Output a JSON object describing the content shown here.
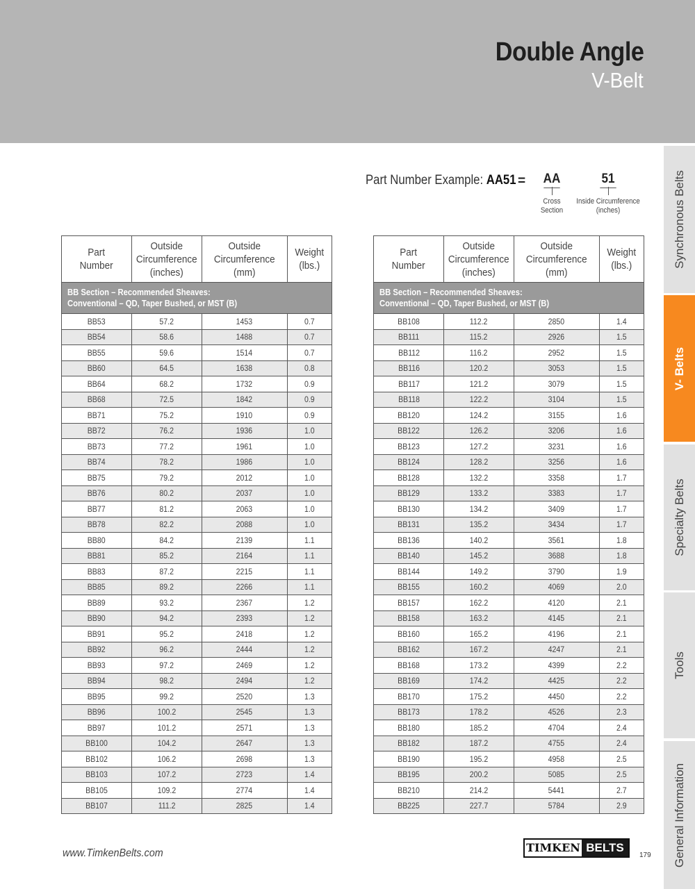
{
  "header": {
    "title": "Double Angle",
    "subtitle": "V-Belt"
  },
  "part_example": {
    "label": "Part Number Example: ",
    "code": "AA51",
    "equals": "=",
    "section_code": "AA",
    "section_note_1": "Cross",
    "section_note_2": "Section",
    "length_code": "51",
    "length_note_1": "Inside Circumference",
    "length_note_2": "(inches)"
  },
  "columns": [
    [
      "Part",
      "Number"
    ],
    [
      "Outside",
      "Circumference",
      "(inches)"
    ],
    [
      "Outside",
      "Circumference",
      "(mm)"
    ],
    [
      "Weight",
      "(lbs.)"
    ]
  ],
  "section_band": {
    "line1": "BB Section – Recommended Sheaves:",
    "line2": "Conventional – QD, Taper Bushed, or MST (B)"
  },
  "tables": [
    {
      "rows": [
        [
          "BB53",
          "57.2",
          "1453",
          "0.7"
        ],
        [
          "BB54",
          "58.6",
          "1488",
          "0.7"
        ],
        [
          "BB55",
          "59.6",
          "1514",
          "0.7"
        ],
        [
          "BB60",
          "64.5",
          "1638",
          "0.8"
        ],
        [
          "BB64",
          "68.2",
          "1732",
          "0.9"
        ],
        [
          "BB68",
          "72.5",
          "1842",
          "0.9"
        ],
        [
          "BB71",
          "75.2",
          "1910",
          "0.9"
        ],
        [
          "BB72",
          "76.2",
          "1936",
          "1.0"
        ],
        [
          "BB73",
          "77.2",
          "1961",
          "1.0"
        ],
        [
          "BB74",
          "78.2",
          "1986",
          "1.0"
        ],
        [
          "BB75",
          "79.2",
          "2012",
          "1.0"
        ],
        [
          "BB76",
          "80.2",
          "2037",
          "1.0"
        ],
        [
          "BB77",
          "81.2",
          "2063",
          "1.0"
        ],
        [
          "BB78",
          "82.2",
          "2088",
          "1.0"
        ],
        [
          "BB80",
          "84.2",
          "2139",
          "1.1"
        ],
        [
          "BB81",
          "85.2",
          "2164",
          "1.1"
        ],
        [
          "BB83",
          "87.2",
          "2215",
          "1.1"
        ],
        [
          "BB85",
          "89.2",
          "2266",
          "1.1"
        ],
        [
          "BB89",
          "93.2",
          "2367",
          "1.2"
        ],
        [
          "BB90",
          "94.2",
          "2393",
          "1.2"
        ],
        [
          "BB91",
          "95.2",
          "2418",
          "1.2"
        ],
        [
          "BB92",
          "96.2",
          "2444",
          "1.2"
        ],
        [
          "BB93",
          "97.2",
          "2469",
          "1.2"
        ],
        [
          "BB94",
          "98.2",
          "2494",
          "1.2"
        ],
        [
          "BB95",
          "99.2",
          "2520",
          "1.3"
        ],
        [
          "BB96",
          "100.2",
          "2545",
          "1.3"
        ],
        [
          "BB97",
          "101.2",
          "2571",
          "1.3"
        ],
        [
          "BB100",
          "104.2",
          "2647",
          "1.3"
        ],
        [
          "BB102",
          "106.2",
          "2698",
          "1.3"
        ],
        [
          "BB103",
          "107.2",
          "2723",
          "1.4"
        ],
        [
          "BB105",
          "109.2",
          "2774",
          "1.4"
        ],
        [
          "BB107",
          "111.2",
          "2825",
          "1.4"
        ]
      ]
    },
    {
      "rows": [
        [
          "BB108",
          "112.2",
          "2850",
          "1.4"
        ],
        [
          "BB111",
          "115.2",
          "2926",
          "1.5"
        ],
        [
          "BB112",
          "116.2",
          "2952",
          "1.5"
        ],
        [
          "BB116",
          "120.2",
          "3053",
          "1.5"
        ],
        [
          "BB117",
          "121.2",
          "3079",
          "1.5"
        ],
        [
          "BB118",
          "122.2",
          "3104",
          "1.5"
        ],
        [
          "BB120",
          "124.2",
          "3155",
          "1.6"
        ],
        [
          "BB122",
          "126.2",
          "3206",
          "1.6"
        ],
        [
          "BB123",
          "127.2",
          "3231",
          "1.6"
        ],
        [
          "BB124",
          "128.2",
          "3256",
          "1.6"
        ],
        [
          "BB128",
          "132.2",
          "3358",
          "1.7"
        ],
        [
          "BB129",
          "133.2",
          "3383",
          "1.7"
        ],
        [
          "BB130",
          "134.2",
          "3409",
          "1.7"
        ],
        [
          "BB131",
          "135.2",
          "3434",
          "1.7"
        ],
        [
          "BB136",
          "140.2",
          "3561",
          "1.8"
        ],
        [
          "BB140",
          "145.2",
          "3688",
          "1.8"
        ],
        [
          "BB144",
          "149.2",
          "3790",
          "1.9"
        ],
        [
          "BB155",
          "160.2",
          "4069",
          "2.0"
        ],
        [
          "BB157",
          "162.2",
          "4120",
          "2.1"
        ],
        [
          "BB158",
          "163.2",
          "4145",
          "2.1"
        ],
        [
          "BB160",
          "165.2",
          "4196",
          "2.1"
        ],
        [
          "BB162",
          "167.2",
          "4247",
          "2.1"
        ],
        [
          "BB168",
          "173.2",
          "4399",
          "2.2"
        ],
        [
          "BB169",
          "174.2",
          "4425",
          "2.2"
        ],
        [
          "BB170",
          "175.2",
          "4450",
          "2.2"
        ],
        [
          "BB173",
          "178.2",
          "4526",
          "2.3"
        ],
        [
          "BB180",
          "185.2",
          "4704",
          "2.4"
        ],
        [
          "BB182",
          "187.2",
          "4755",
          "2.4"
        ],
        [
          "BB190",
          "195.2",
          "4958",
          "2.5"
        ],
        [
          "BB195",
          "200.2",
          "5085",
          "2.5"
        ],
        [
          "BB210",
          "214.2",
          "5441",
          "2.7"
        ],
        [
          "BB225",
          "227.7",
          "5784",
          "2.9"
        ]
      ]
    }
  ],
  "side_tabs": [
    {
      "label": "Synchronous Belts",
      "active": false
    },
    {
      "label": "V- Belts",
      "active": true
    },
    {
      "label": "Specialty Belts",
      "active": false
    },
    {
      "label": "Tools",
      "active": false
    },
    {
      "label": "General Information",
      "active": false
    }
  ],
  "footer": {
    "url": "www.TimkenBelts.com",
    "logo_left": "TIMKEN",
    "logo_right": "BELTS",
    "page_number": "179"
  },
  "colors": {
    "accent": "#f7891f",
    "header_band": "#b5b5b5",
    "section_band": "#9a9a9a",
    "tab_inactive": "#e1e1e1"
  }
}
